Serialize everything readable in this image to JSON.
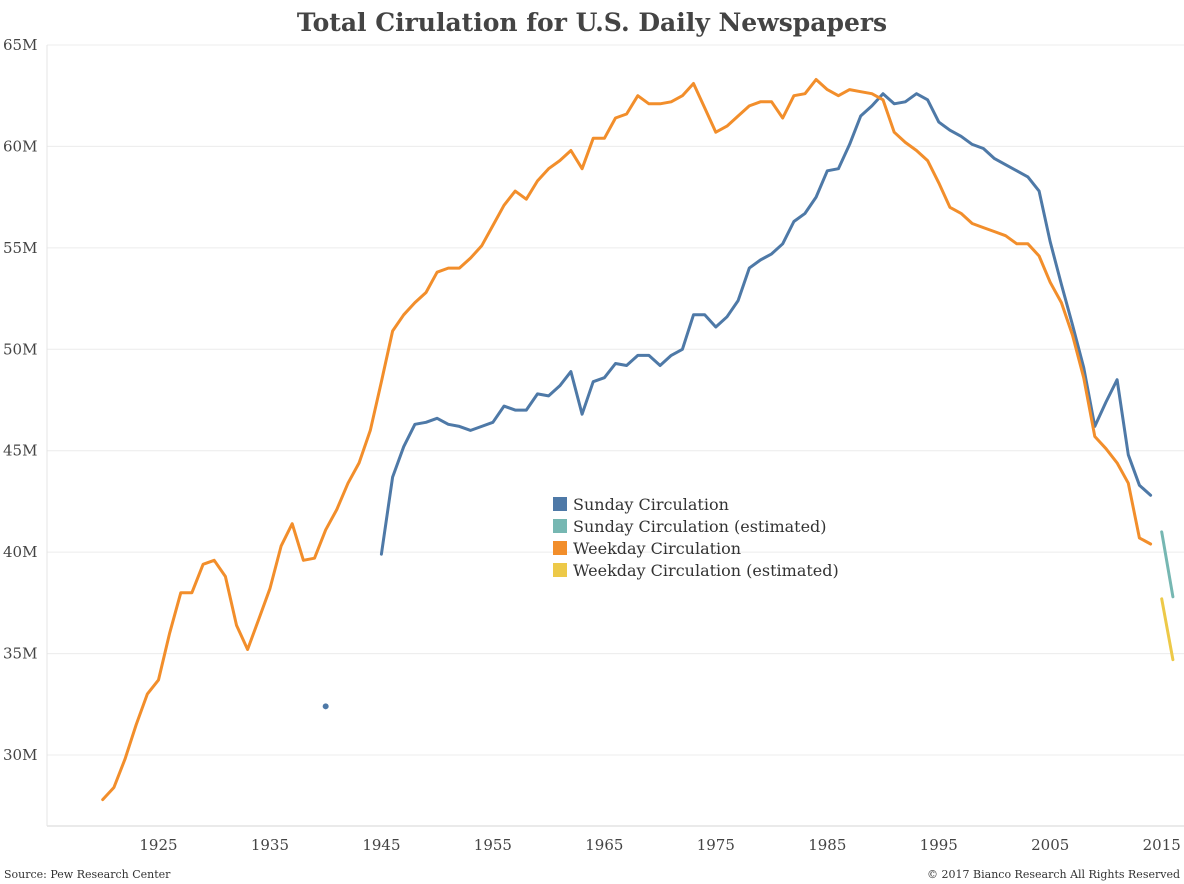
{
  "chart_data": {
    "type": "line",
    "title": "Total Cirulation for U.S. Daily Newspapers",
    "xlabel": "",
    "ylabel": "",
    "xlim": [
      1915,
      2017
    ],
    "ylim": [
      26.5,
      65
    ],
    "x_ticks": [
      1925,
      1935,
      1945,
      1955,
      1965,
      1975,
      1985,
      1995,
      2005,
      2015
    ],
    "x_tick_labels": [
      "1925",
      "1935",
      "1945",
      "1955",
      "1965",
      "1975",
      "1985",
      "1995",
      "2005",
      "2015"
    ],
    "y_ticks": [
      30,
      35,
      40,
      45,
      50,
      55,
      60,
      65
    ],
    "y_tick_labels": [
      "30M",
      "35M",
      "40M",
      "45M",
      "50M",
      "55M",
      "60M",
      "65M"
    ],
    "grid": "horizontal",
    "legend_position": "center",
    "series": [
      {
        "name": "Sunday Circulation",
        "color": "#4e79a7",
        "points": [
          [
            1940,
            32.4
          ]
        ]
      },
      {
        "name": "Sunday Circulation",
        "color": "#4e79a7",
        "points": [
          [
            1945,
            39.9
          ],
          [
            1946,
            43.7
          ],
          [
            1947,
            45.2
          ],
          [
            1948,
            46.3
          ],
          [
            1949,
            46.4
          ],
          [
            1950,
            46.6
          ],
          [
            1951,
            46.3
          ],
          [
            1952,
            46.2
          ],
          [
            1953,
            46.0
          ],
          [
            1954,
            46.2
          ],
          [
            1955,
            46.4
          ],
          [
            1956,
            47.2
          ],
          [
            1957,
            47.0
          ],
          [
            1958,
            47.0
          ],
          [
            1959,
            47.8
          ],
          [
            1960,
            47.7
          ],
          [
            1961,
            48.2
          ],
          [
            1962,
            48.9
          ],
          [
            1963,
            46.8
          ],
          [
            1964,
            48.4
          ],
          [
            1965,
            48.6
          ],
          [
            1966,
            49.3
          ],
          [
            1967,
            49.2
          ],
          [
            1968,
            49.7
          ],
          [
            1969,
            49.7
          ],
          [
            1970,
            49.2
          ],
          [
            1971,
            49.7
          ],
          [
            1972,
            50.0
          ],
          [
            1973,
            51.7
          ],
          [
            1974,
            51.7
          ],
          [
            1975,
            51.1
          ],
          [
            1976,
            51.6
          ],
          [
            1977,
            52.4
          ],
          [
            1978,
            54.0
          ],
          [
            1979,
            54.4
          ],
          [
            1980,
            54.7
          ],
          [
            1981,
            55.2
          ],
          [
            1982,
            56.3
          ],
          [
            1983,
            56.7
          ],
          [
            1984,
            57.5
          ],
          [
            1985,
            58.8
          ],
          [
            1986,
            58.9
          ],
          [
            1987,
            60.1
          ],
          [
            1988,
            61.5
          ],
          [
            1989,
            62.0
          ],
          [
            1990,
            62.6
          ],
          [
            1991,
            62.1
          ],
          [
            1992,
            62.2
          ],
          [
            1993,
            62.6
          ],
          [
            1994,
            62.3
          ],
          [
            1995,
            61.2
          ],
          [
            1996,
            60.8
          ],
          [
            1997,
            60.5
          ],
          [
            1998,
            60.1
          ],
          [
            1999,
            59.9
          ],
          [
            2000,
            59.4
          ],
          [
            2001,
            59.1
          ],
          [
            2002,
            58.8
          ],
          [
            2003,
            58.5
          ],
          [
            2004,
            57.8
          ],
          [
            2005,
            55.3
          ],
          [
            2006,
            53.2
          ],
          [
            2007,
            51.2
          ],
          [
            2008,
            49.1
          ],
          [
            2009,
            46.2
          ],
          [
            2010,
            47.4
          ],
          [
            2011,
            48.5
          ],
          [
            2012,
            44.8
          ],
          [
            2013,
            43.3
          ],
          [
            2014,
            42.8
          ]
        ]
      },
      {
        "name": "Sunday Circulation (estimated)",
        "color": "#76b7b2",
        "points": [
          [
            2015,
            41.0
          ],
          [
            2016,
            37.8
          ]
        ]
      },
      {
        "name": "Weekday Circulation",
        "color": "#f28e2b",
        "points": [
          [
            1920,
            27.8
          ],
          [
            1921,
            28.4
          ],
          [
            1922,
            29.8
          ],
          [
            1923,
            31.5
          ],
          [
            1924,
            33.0
          ],
          [
            1925,
            33.7
          ],
          [
            1926,
            36.0
          ],
          [
            1927,
            38.0
          ],
          [
            1928,
            38.0
          ],
          [
            1929,
            39.4
          ],
          [
            1930,
            39.6
          ],
          [
            1931,
            38.8
          ],
          [
            1932,
            36.4
          ],
          [
            1933,
            35.2
          ],
          [
            1934,
            36.7
          ],
          [
            1935,
            38.2
          ],
          [
            1936,
            40.3
          ],
          [
            1937,
            41.4
          ],
          [
            1938,
            39.6
          ],
          [
            1939,
            39.7
          ],
          [
            1940,
            41.1
          ],
          [
            1941,
            42.1
          ],
          [
            1942,
            43.4
          ],
          [
            1943,
            44.4
          ],
          [
            1944,
            46.0
          ],
          [
            1945,
            48.4
          ],
          [
            1946,
            50.9
          ],
          [
            1947,
            51.7
          ],
          [
            1948,
            52.3
          ],
          [
            1949,
            52.8
          ],
          [
            1950,
            53.8
          ],
          [
            1951,
            54.0
          ],
          [
            1952,
            54.0
          ],
          [
            1953,
            54.5
          ],
          [
            1954,
            55.1
          ],
          [
            1955,
            56.1
          ],
          [
            1956,
            57.1
          ],
          [
            1957,
            57.8
          ],
          [
            1958,
            57.4
          ],
          [
            1959,
            58.3
          ],
          [
            1960,
            58.9
          ],
          [
            1961,
            59.3
          ],
          [
            1962,
            59.8
          ],
          [
            1963,
            58.9
          ],
          [
            1964,
            60.4
          ],
          [
            1965,
            60.4
          ],
          [
            1966,
            61.4
          ],
          [
            1967,
            61.6
          ],
          [
            1968,
            62.5
          ],
          [
            1969,
            62.1
          ],
          [
            1970,
            62.1
          ],
          [
            1971,
            62.2
          ],
          [
            1972,
            62.5
          ],
          [
            1973,
            63.1
          ],
          [
            1974,
            61.9
          ],
          [
            1975,
            60.7
          ],
          [
            1976,
            61.0
          ],
          [
            1977,
            61.5
          ],
          [
            1978,
            62.0
          ],
          [
            1979,
            62.2
          ],
          [
            1980,
            62.2
          ],
          [
            1981,
            61.4
          ],
          [
            1982,
            62.5
          ],
          [
            1983,
            62.6
          ],
          [
            1984,
            63.3
          ],
          [
            1985,
            62.8
          ],
          [
            1986,
            62.5
          ],
          [
            1987,
            62.8
          ],
          [
            1988,
            62.7
          ],
          [
            1989,
            62.6
          ],
          [
            1990,
            62.3
          ],
          [
            1991,
            60.7
          ],
          [
            1992,
            60.2
          ],
          [
            1993,
            59.8
          ],
          [
            1994,
            59.3
          ],
          [
            1995,
            58.2
          ],
          [
            1996,
            57.0
          ],
          [
            1997,
            56.7
          ],
          [
            1998,
            56.2
          ],
          [
            1999,
            56.0
          ],
          [
            2000,
            55.8
          ],
          [
            2001,
            55.6
          ],
          [
            2002,
            55.2
          ],
          [
            2003,
            55.2
          ],
          [
            2004,
            54.6
          ],
          [
            2005,
            53.3
          ],
          [
            2006,
            52.3
          ],
          [
            2007,
            50.7
          ],
          [
            2008,
            48.6
          ],
          [
            2009,
            45.7
          ],
          [
            2010,
            45.1
          ],
          [
            2011,
            44.4
          ],
          [
            2012,
            43.4
          ],
          [
            2013,
            40.7
          ],
          [
            2014,
            40.4
          ]
        ]
      },
      {
        "name": "Weekday Circulation (estimated)",
        "color": "#edc948",
        "points": [
          [
            2015,
            37.7
          ],
          [
            2016,
            34.7
          ]
        ]
      }
    ],
    "legend": [
      {
        "label": "Sunday Circulation",
        "color": "#4e79a7"
      },
      {
        "label": "Sunday Circulation (estimated)",
        "color": "#76b7b2"
      },
      {
        "label": "Weekday Circulation",
        "color": "#f28e2b"
      },
      {
        "label": "Weekday Circulation (estimated)",
        "color": "#edc948"
      }
    ]
  },
  "footer": {
    "source": "Source: Pew Research Center",
    "copyright": "© 2017 Bianco Research  All Rights Reserved"
  }
}
